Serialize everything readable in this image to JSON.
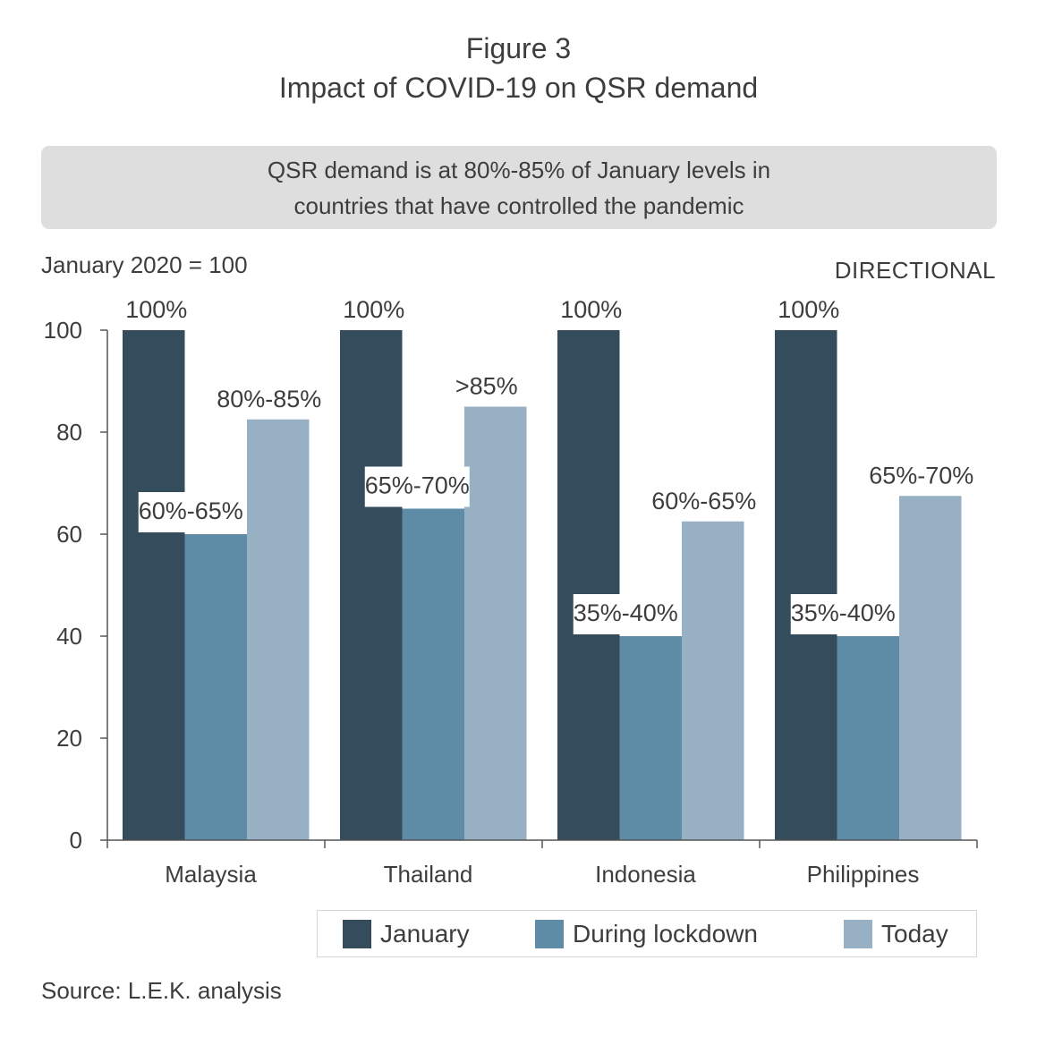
{
  "figure_label": "Figure 3",
  "figure_title": "Impact of COVID-19 on QSR demand",
  "callout": {
    "line1": "QSR demand is at 80%-85% of January levels in",
    "line2": "countries that have controlled the pandemic"
  },
  "baseline_note": "January 2020 = 100",
  "directional_label": "DIRECTIONAL",
  "source": "Source: L.E.K. analysis",
  "colors": {
    "january": "#344c5c",
    "lockdown": "#5e8ba6",
    "today": "#97b0c4",
    "axis": "#555555"
  },
  "legend": [
    {
      "name": "January",
      "color": "#344c5c"
    },
    {
      "name": "During lockdown",
      "color": "#5e8ba6"
    },
    {
      "name": "Today",
      "color": "#97b0c4"
    }
  ],
  "chart_data": {
    "type": "bar",
    "title": "Impact of COVID-19 on QSR demand",
    "ylabel": "January 2020 = 100",
    "ylim": [
      0,
      100
    ],
    "yticks": [
      0,
      20,
      40,
      60,
      80,
      100
    ],
    "grid": false,
    "legend_position": "bottom",
    "categories": [
      "Malaysia",
      "Thailand",
      "Indonesia",
      "Philippines"
    ],
    "series": [
      {
        "name": "January",
        "values": [
          100,
          100,
          100,
          100
        ],
        "labels": [
          "100%",
          "100%",
          "100%",
          "100%"
        ]
      },
      {
        "name": "During lockdown",
        "values": [
          60,
          65,
          40,
          40
        ],
        "labels": [
          "60%-65%",
          "65%-70%",
          "35%-40%",
          "35%-40%"
        ]
      },
      {
        "name": "Today",
        "values": [
          82.5,
          85,
          62.5,
          67.5
        ],
        "labels": [
          "80%-85%",
          ">85%",
          "60%-65%",
          "65%-70%"
        ]
      }
    ]
  }
}
